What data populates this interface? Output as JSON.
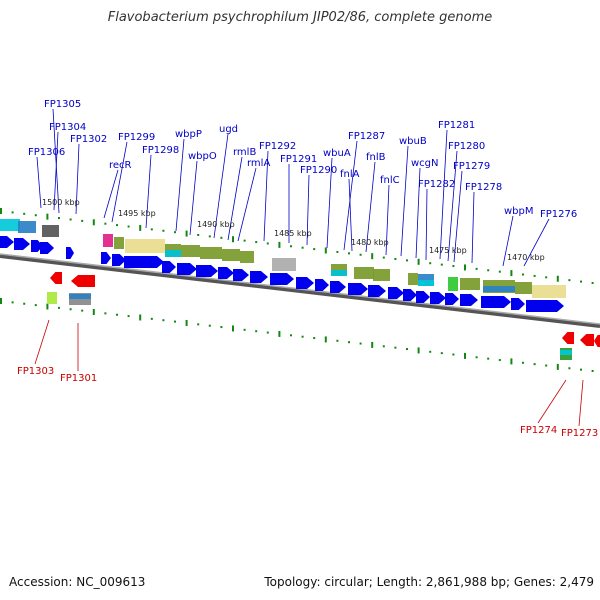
{
  "title": "Flavobacterium psychrophilum JIP02/86, complete genome",
  "footer": {
    "accession": "Accession: NC_009613",
    "stats": "Topology: circular; Length: 2,861,988 bp; Genes: 2,479"
  },
  "scale": {
    "ticks": [
      "1500 kbp",
      "1495 kbp",
      "1490 kbp",
      "1485 kbp",
      "1480 kbp",
      "1475 kbp",
      "1470 kbp"
    ]
  },
  "forward_labels": [
    "FP1305",
    "FP1304",
    "FP1306",
    "FP1302",
    "FP1299",
    "recR",
    "FP1298",
    "wbpP",
    "wbpO",
    "ugd",
    "rmlB",
    "rmlA",
    "FP1292",
    "FP1291",
    "FP1290",
    "wbuA",
    "FP1287",
    "fnlA",
    "fnlB",
    "wbuB",
    "fnlC",
    "wcgN",
    "FP1281",
    "FP1280",
    "FP1279",
    "FP1282",
    "FP1278",
    "wbpM",
    "FP1276"
  ],
  "reverse_labels": [
    "FP1303",
    "FP1301",
    "FP1274",
    "FP1273"
  ],
  "colors": {
    "forward_gene": "#0000ee",
    "reverse_gene": "#ee0000",
    "backbone": "#888888",
    "tick": "#118811",
    "forward_label": "#0000c8",
    "reverse_label": "#c80000"
  }
}
